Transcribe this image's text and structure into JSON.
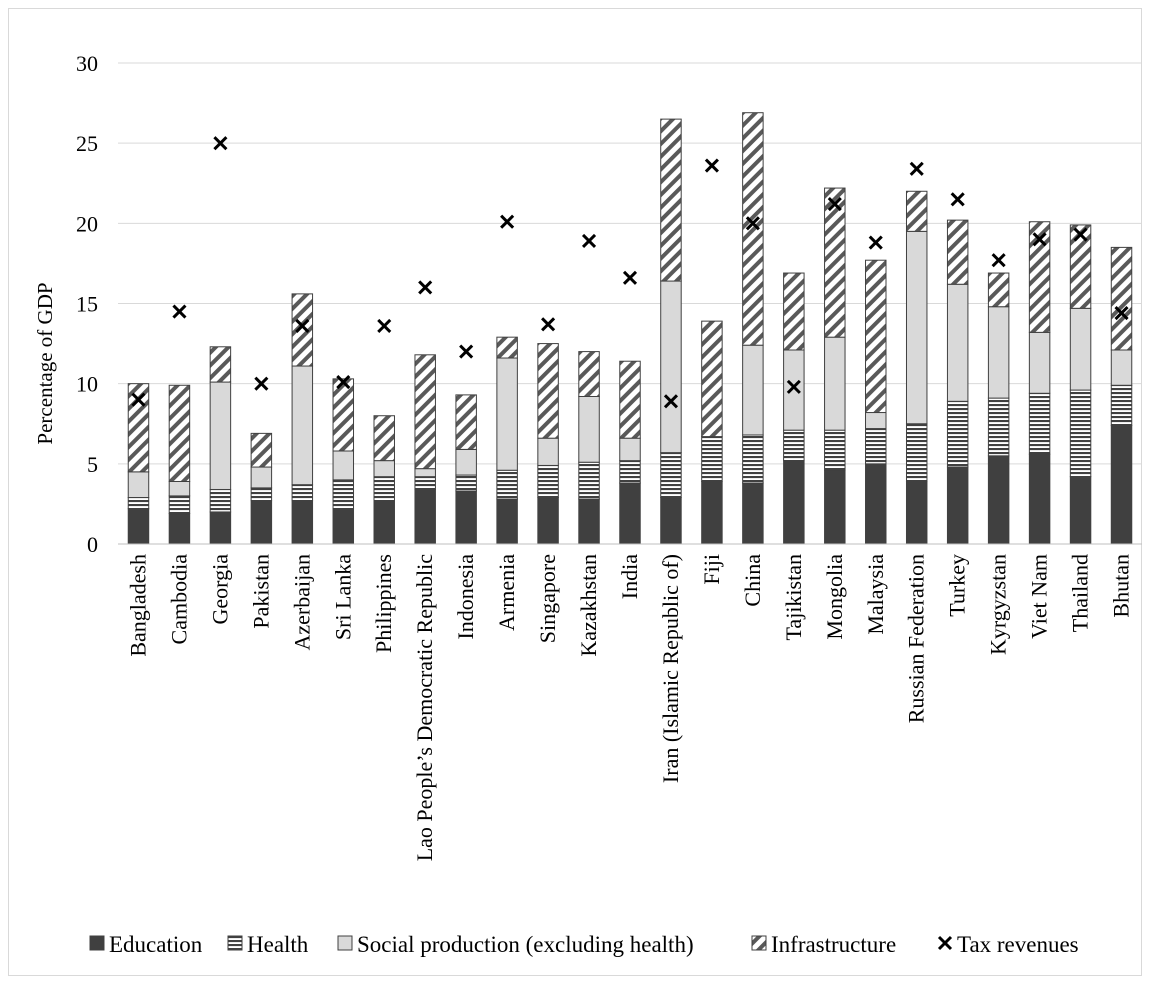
{
  "chart_data": {
    "type": "bar",
    "stacked": true,
    "title": "",
    "xlabel": "",
    "ylabel": "Percentage of GDP",
    "ylim": [
      0,
      30
    ],
    "yticks": [
      0,
      5,
      10,
      15,
      20,
      25,
      30
    ],
    "grid": "horizontal",
    "legend_position": "bottom",
    "categories": [
      "Bangladesh",
      "Cambodia",
      "Georgia",
      "Pakistan",
      "Azerbaijan",
      "Sri Lanka",
      "Philippines",
      "Lao People’s Democratic Republic",
      "Indonesia",
      "Armenia",
      "Singapore",
      "Kazakhstan",
      "India",
      "Iran (Islamic Republic of)",
      "Fiji",
      "China",
      "Tajikistan",
      "Mongolia",
      "Malaysia",
      "Russian Federation",
      "Turkey",
      "Kyrgyzstan",
      "Viet Nam",
      "Thailand",
      "Bhutan"
    ],
    "series": [
      {
        "name": "Education",
        "kind": "bar",
        "pattern": "solid",
        "color": "#404040",
        "values": [
          2.2,
          1.9,
          2.0,
          2.7,
          2.7,
          2.2,
          2.7,
          3.4,
          3.3,
          2.8,
          2.9,
          2.8,
          3.8,
          2.9,
          3.9,
          3.8,
          5.2,
          4.6,
          5.0,
          3.9,
          4.8,
          5.5,
          5.6,
          4.2,
          7.4
        ]
      },
      {
        "name": "Health",
        "kind": "bar",
        "pattern": "horizontal-stripes",
        "color": "#404040",
        "values": [
          0.7,
          1.1,
          1.4,
          0.8,
          1.0,
          1.8,
          1.5,
          0.8,
          1.0,
          1.8,
          2.0,
          2.3,
          1.4,
          2.8,
          2.8,
          3.0,
          1.9,
          2.5,
          2.2,
          3.6,
          4.1,
          3.6,
          3.8,
          5.4,
          2.5
        ]
      },
      {
        "name": "Social production (excluding health)",
        "kind": "bar",
        "pattern": "solid",
        "color": "#d9d9d9",
        "values": [
          1.6,
          0.9,
          6.7,
          1.3,
          7.4,
          1.8,
          1.0,
          0.5,
          1.6,
          7.0,
          1.7,
          4.1,
          1.4,
          10.7,
          0.0,
          5.6,
          5.0,
          5.8,
          1.0,
          12.0,
          7.3,
          5.7,
          3.8,
          5.1,
          2.2
        ]
      },
      {
        "name": "Infrastructure",
        "kind": "bar",
        "pattern": "diagonal-hatch",
        "color": "#404040",
        "values": [
          5.5,
          6.0,
          2.2,
          2.1,
          4.5,
          4.5,
          2.8,
          7.1,
          3.4,
          1.3,
          5.9,
          2.8,
          4.8,
          10.1,
          7.2,
          14.5,
          4.8,
          9.3,
          9.5,
          2.5,
          4.0,
          2.1,
          6.9,
          5.2,
          6.4
        ]
      },
      {
        "name": "Tax revenues",
        "kind": "marker",
        "marker": "x",
        "color": "#000000",
        "values": [
          9.0,
          14.5,
          25.0,
          10.0,
          13.6,
          10.1,
          13.6,
          16.0,
          12.0,
          20.1,
          13.7,
          18.9,
          16.6,
          8.9,
          23.6,
          20.0,
          9.8,
          21.2,
          18.8,
          23.4,
          21.5,
          17.7,
          19.0,
          19.3,
          14.4
        ]
      }
    ]
  }
}
